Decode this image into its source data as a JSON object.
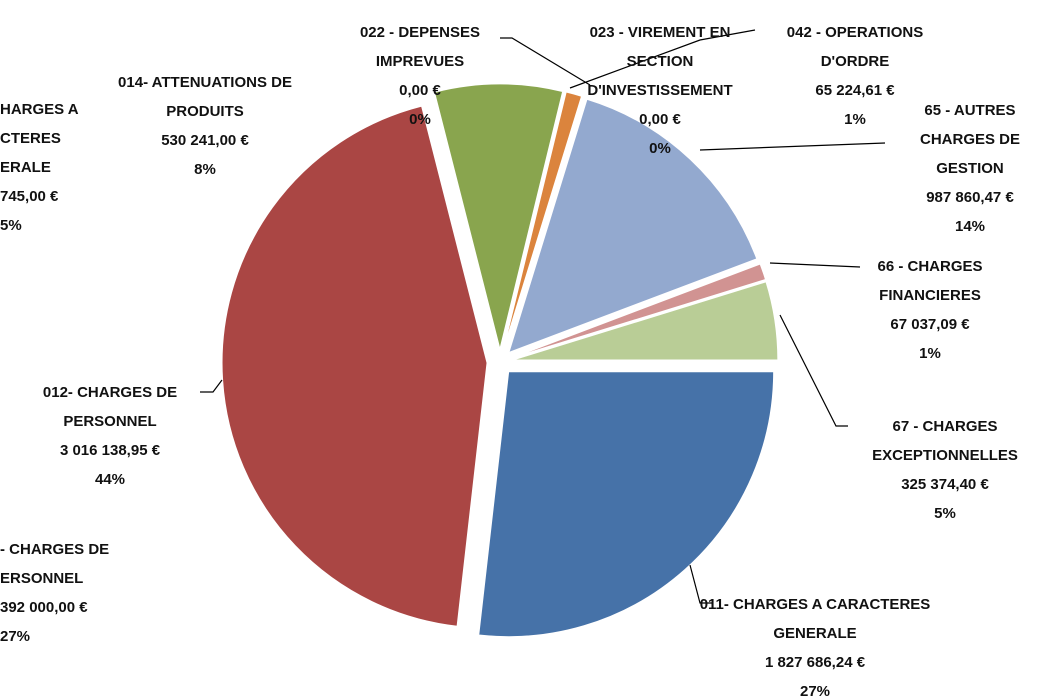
{
  "chart_data": {
    "type": "pie",
    "categories": [
      "011- CHARGES A CARACTERES GENERALE",
      "012- CHARGES DE PERSONNEL",
      "014- ATTENUATIONS DE PRODUITS",
      "022 - DEPENSES IMPREVUES",
      "023 - VIREMENT EN SECTION D'INVESTISSEMENT",
      "042 - OPERATIONS D'ORDRE",
      "65 - AUTRES CHARGES DE GESTION",
      "66 - CHARGES FINANCIERES",
      "67 - CHARGES EXCEPTIONNELLES"
    ],
    "values": [
      1827686.24,
      3016138.95,
      530241.0,
      0,
      0,
      65224.61,
      987860.47,
      67037.09,
      325374.4
    ],
    "value_labels": [
      "1 827 686,24 €",
      "3 016 138,95 €",
      "530 241,00 €",
      "0,00 €",
      "0,00 €",
      "65 224,61 €",
      "987 860,47 €",
      "67 037,09 €",
      "325 374,40 €"
    ],
    "percent_labels": [
      "27%",
      "44%",
      "8%",
      "0%",
      "0%",
      "1%",
      "14%",
      "1%",
      "5%"
    ],
    "colors": [
      "#4672a8",
      "#aa4644",
      "#89a54e",
      "#7f9bc9",
      "#db843d",
      "#db843d",
      "#93a9cf",
      "#d19392",
      "#b9cd96"
    ],
    "annotations": [
      [
        "HARGES A",
        "CTERES",
        "ERALE",
        "745,00 €",
        "5%"
      ],
      [
        "- CHARGES DE",
        "ERSONNEL",
        "392 000,00 €",
        "27%"
      ]
    ]
  }
}
